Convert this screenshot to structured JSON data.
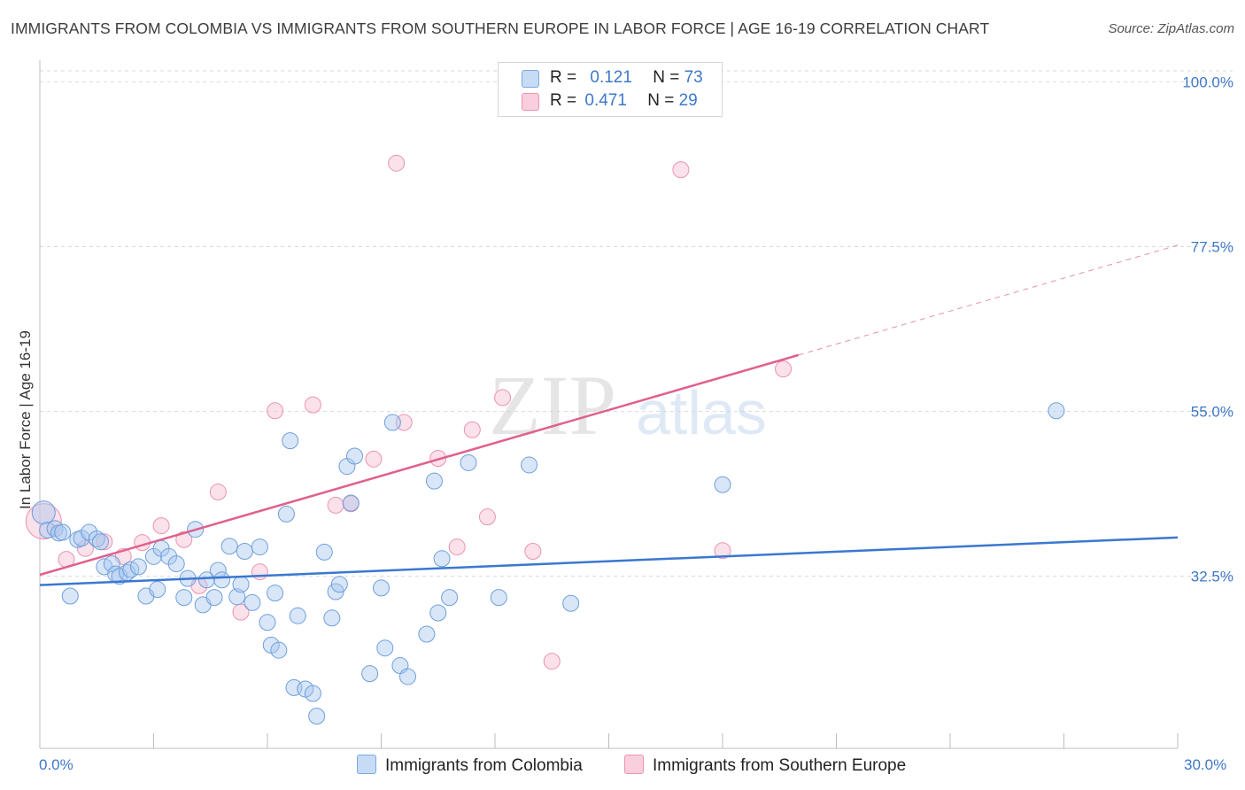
{
  "title": "IMMIGRANTS FROM COLOMBIA VS IMMIGRANTS FROM SOUTHERN EUROPE IN LABOR FORCE | AGE 16-19 CORRELATION CHART",
  "source": "Source: ZipAtlas.com",
  "watermark": {
    "zip": "ZIP",
    "atlas": "atlas"
  },
  "legend": {
    "r_label": "R =",
    "n_label": "N =",
    "items": [
      {
        "r": "0.121",
        "n": "73",
        "color": "#a9c8f0",
        "border": "#7aa8e0"
      },
      {
        "r": "0.471",
        "n": "29",
        "color": "#f7bcd0",
        "border": "#ec93b0"
      }
    ]
  },
  "bottom_legend": [
    "Immigrants from Colombia",
    "Immigrants from Southern Europe"
  ],
  "colors": {
    "blue": "#3a78d0",
    "pink": "#e0608e",
    "grid": "#d9d9d9",
    "tick_text": "#3f78c9"
  },
  "chart_data": {
    "type": "scatter",
    "xlabel": "",
    "ylabel": "In Labor Force | Age 16-19",
    "xlim": [
      0.0,
      30.0
    ],
    "ylim": [
      9.0,
      101.5
    ],
    "x_tick_labels": [
      "0.0%",
      "30.0%"
    ],
    "y_ticks": [
      {
        "value": 100.0,
        "label": "100.0%"
      },
      {
        "value": 77.5,
        "label": "77.5%"
      },
      {
        "value": 55.0,
        "label": "55.0%"
      },
      {
        "value": 32.5,
        "label": "32.5%"
      }
    ],
    "series": [
      {
        "name": "Immigrants from Colombia",
        "color": "#a9c8f0",
        "trend": {
          "x": [
            0.0,
            30.0
          ],
          "y": [
            31.3,
            37.8
          ],
          "dashed_extension": false
        },
        "points": [
          [
            0.1,
            41.2
          ],
          [
            0.2,
            38.8
          ],
          [
            0.4,
            39.0
          ],
          [
            0.5,
            38.4
          ],
          [
            0.6,
            38.5
          ],
          [
            0.8,
            29.8
          ],
          [
            1.0,
            37.5
          ],
          [
            1.1,
            37.7
          ],
          [
            1.3,
            38.5
          ],
          [
            1.5,
            37.6
          ],
          [
            1.6,
            37.2
          ],
          [
            1.7,
            33.8
          ],
          [
            1.9,
            34.2
          ],
          [
            2.0,
            32.8
          ],
          [
            2.1,
            32.5
          ],
          [
            2.3,
            33.0
          ],
          [
            2.4,
            33.4
          ],
          [
            2.6,
            33.8
          ],
          [
            2.8,
            29.8
          ],
          [
            3.0,
            35.2
          ],
          [
            3.1,
            30.7
          ],
          [
            3.2,
            36.3
          ],
          [
            3.4,
            35.2
          ],
          [
            3.6,
            34.2
          ],
          [
            3.8,
            29.6
          ],
          [
            3.9,
            32.2
          ],
          [
            4.1,
            38.9
          ],
          [
            4.3,
            28.6
          ],
          [
            4.4,
            32.0
          ],
          [
            4.6,
            29.6
          ],
          [
            4.7,
            33.3
          ],
          [
            4.8,
            32.0
          ],
          [
            5.0,
            36.6
          ],
          [
            5.2,
            29.7
          ],
          [
            5.3,
            31.4
          ],
          [
            5.4,
            35.9
          ],
          [
            5.6,
            28.9
          ],
          [
            5.8,
            36.5
          ],
          [
            6.0,
            26.2
          ],
          [
            6.1,
            23.1
          ],
          [
            6.2,
            30.2
          ],
          [
            6.3,
            22.4
          ],
          [
            6.5,
            41.0
          ],
          [
            6.6,
            51.0
          ],
          [
            6.7,
            17.3
          ],
          [
            6.8,
            27.1
          ],
          [
            7.0,
            17.1
          ],
          [
            7.2,
            16.5
          ],
          [
            7.3,
            13.4
          ],
          [
            7.5,
            35.8
          ],
          [
            7.7,
            26.8
          ],
          [
            7.8,
            30.4
          ],
          [
            7.9,
            31.4
          ],
          [
            8.1,
            47.5
          ],
          [
            8.2,
            42.5
          ],
          [
            8.3,
            48.9
          ],
          [
            8.7,
            19.2
          ],
          [
            9.0,
            30.9
          ],
          [
            9.1,
            22.7
          ],
          [
            9.3,
            53.5
          ],
          [
            9.5,
            20.3
          ],
          [
            9.7,
            18.8
          ],
          [
            10.2,
            24.6
          ],
          [
            10.4,
            45.5
          ],
          [
            10.5,
            27.5
          ],
          [
            10.6,
            34.9
          ],
          [
            10.8,
            29.6
          ],
          [
            11.3,
            48.0
          ],
          [
            12.1,
            29.6
          ],
          [
            12.9,
            47.7
          ],
          [
            14.0,
            28.8
          ],
          [
            18.0,
            45.0
          ],
          [
            26.8,
            55.1
          ]
        ]
      },
      {
        "name": "Immigrants from Southern Europe",
        "color": "#f7bcd0",
        "trend": {
          "x": [
            0.0,
            20.0
          ],
          "y": [
            32.7,
            62.7
          ],
          "dashed_extension": {
            "x": [
              20.0,
              30.0
            ],
            "y": [
              62.7,
              77.7
            ]
          }
        },
        "points": [
          [
            0.1,
            40.0
          ],
          [
            0.7,
            34.8
          ],
          [
            1.2,
            36.3
          ],
          [
            1.7,
            37.2
          ],
          [
            2.2,
            35.2
          ],
          [
            2.7,
            37.1
          ],
          [
            3.2,
            39.4
          ],
          [
            3.8,
            37.5
          ],
          [
            4.2,
            31.2
          ],
          [
            4.7,
            44.0
          ],
          [
            5.3,
            27.6
          ],
          [
            5.8,
            33.1
          ],
          [
            6.2,
            55.1
          ],
          [
            7.2,
            55.9
          ],
          [
            7.8,
            42.2
          ],
          [
            8.2,
            42.4
          ],
          [
            8.8,
            48.5
          ],
          [
            9.4,
            88.9
          ],
          [
            9.6,
            53.5
          ],
          [
            10.5,
            48.6
          ],
          [
            11.0,
            36.5
          ],
          [
            11.4,
            52.5
          ],
          [
            11.8,
            40.6
          ],
          [
            12.2,
            56.9
          ],
          [
            13.0,
            35.9
          ],
          [
            13.5,
            20.9
          ],
          [
            16.9,
            88.0
          ],
          [
            18.0,
            36.0
          ],
          [
            19.6,
            60.8
          ]
        ]
      }
    ]
  }
}
